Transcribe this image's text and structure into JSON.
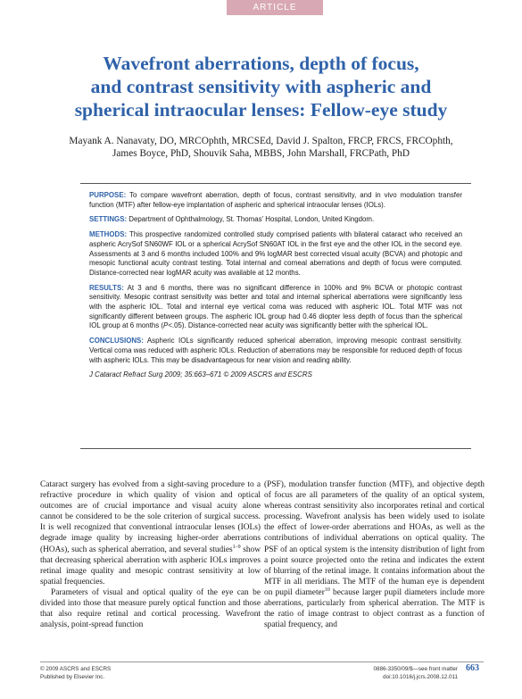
{
  "header": {
    "tag": "ARTICLE"
  },
  "title_lines": [
    "Wavefront aberrations, depth of focus,",
    "and contrast sensitivity with aspheric and",
    "spherical intraocular lenses: Fellow-eye study"
  ],
  "author_lines": [
    "Mayank A. Nanavaty, DO, MRCOphth, MRCSEd, David J. Spalton, FRCP, FRCS, FRCOphth,",
    "James Boyce, PhD, Shouvik Saha, MBBS, John Marshall, FRCPath, PhD"
  ],
  "abstract": {
    "purpose": {
      "label": "PURPOSE:",
      "text": " To compare wavefront aberration, depth of focus, contrast sensitivity, and in vivo modulation transfer function (MTF) after fellow-eye implantation of aspheric and spherical intraocular lenses (IOLs)."
    },
    "settings": {
      "label": "SETTINGS:",
      "text": " Department of Ophthalmology, St. Thomas' Hospital, London, United Kingdom."
    },
    "methods": {
      "label": "METHODS:",
      "text": " This prospective randomized controlled study comprised patients with bilateral cataract who received an aspheric AcrySof SN60WF IOL or a spherical AcrySof SN60AT IOL in the first eye and the other IOL in the second eye. Assessments at 3 and 6 months included 100% and 9% logMAR best corrected visual acuity (BCVA) and photopic and mesopic functional acuity contrast testing. Total internal and corneal aberrations and depth of focus were computed. Distance-corrected near logMAR acuity was available at 12 months."
    },
    "results": {
      "label": "RESULTS:",
      "text_before": " At 3 and 6 months, there was no significant difference in 100% and 9% BCVA or photopic contrast sensitivity. Mesopic contrast sensitivity was better and total and internal spherical aberrations were significantly less with the aspheric IOL. Total and internal eye vertical coma was reduced with aspheric IOL. Total MTF was not significantly different between groups. The aspheric IOL group had 0.46 diopter less depth of focus than the spherical IOL group at 6 months (",
      "p": "P",
      "text_after": "<.05). Distance-corrected near acuity was significantly better with the spherical IOL."
    },
    "conclusions": {
      "label": "CONCLUSIONS:",
      "text": " Aspheric IOLs significantly reduced spherical aberration, improving mesopic contrast sensitivity. Vertical coma was reduced with aspheric IOLs. Reduction of aberrations may be responsible for reduced depth of focus with aspheric IOLs. This may be disadvantageous for near vision and reading ability."
    },
    "citation": "J Cataract Refract Surg 2009; 35:663–671 © 2009 ASCRS and ESCRS"
  },
  "body": {
    "left_p1_a": "Cataract surgery has evolved from a sight-saving procedure to a refractive procedure in which quality of vision and optical outcomes are of crucial importance and visual acuity alone cannot be considered to be the sole criterion of surgical success. It is well recognized that conventional intraocular lenses (IOLs) degrade image quality by increasing higher-order aberrations (HOAs), such as spherical aberration, and several studies",
    "left_p1_ref": "1–9",
    "left_p1_b": " show that decreasing spherical aberration with aspheric IOLs improves retinal image quality and mesopic contrast sensitivity at low spatial frequencies.",
    "left_p2": "Parameters of visual and optical quality of the eye can be divided into those that measure purely optical function and those that also require retinal and cortical processing. Wavefront analysis, point-spread function",
    "right_a": "(PSF), modulation transfer function (MTF), and objective depth of focus are all parameters of the quality of an optical system, whereas contrast sensitivity also incorporates retinal and cortical processing. Wavefront analysis has been widely used to isolate the effect of lower-order aberrations and HOAs, as well as the contributions of individual aberrations on optical quality. The PSF of an optical system is the intensity distribution of light from a point source projected onto the retina and indicates the extent of blurring of the retinal image. It contains information about the MTF in all meridians. The MTF of the human eye is dependent on pupil diameter",
    "right_ref": "10",
    "right_b": " because larger pupil diameters include more aberrations, particularly from spherical aberration. The MTF is the ratio of image contrast to object contrast as a function of spatial frequency, and"
  },
  "footer": {
    "copyright": "© 2009 ASCRS and ESCRS",
    "publisher": "Published by Elsevier Inc.",
    "issn": "0886-3350/09/$—see front matter",
    "doi": "doi:10.1016/j.jcrs.2008.12.011",
    "page": "663"
  }
}
